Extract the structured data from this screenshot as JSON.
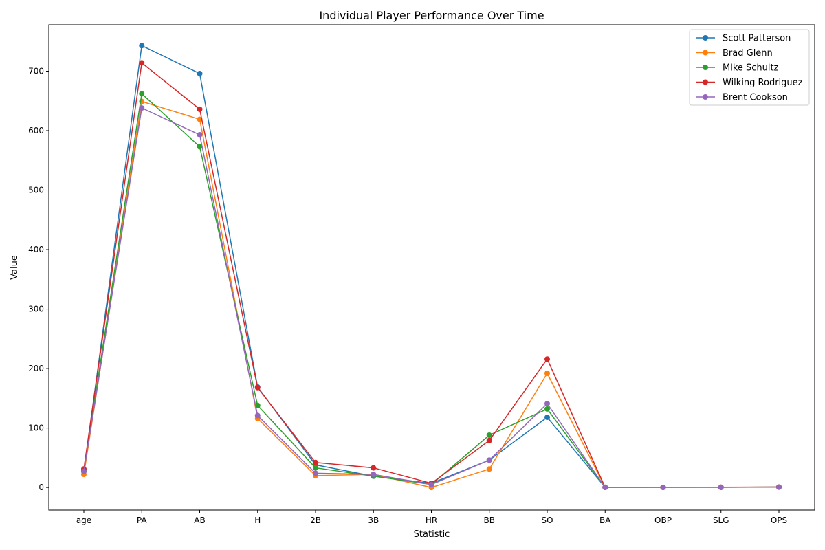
{
  "chart_data": {
    "type": "line",
    "title": "Individual Player Performance Over Time",
    "xlabel": "Statistic",
    "ylabel": "Value",
    "categories": [
      "age",
      "PA",
      "AB",
      "H",
      "2B",
      "3B",
      "HR",
      "BB",
      "SO",
      "BA",
      "OBP",
      "SLG",
      "OPS"
    ],
    "ylim": [
      -38,
      778
    ],
    "yticks": [
      0,
      100,
      200,
      300,
      400,
      500,
      600,
      700
    ],
    "grid": false,
    "legend_position": "top-right",
    "series": [
      {
        "name": "Scott Patterson",
        "color": "#1f77b4",
        "values": [
          27,
          743,
          696,
          169,
          38,
          19,
          7,
          46,
          118,
          0.243,
          0.29,
          0.349,
          0.639
        ]
      },
      {
        "name": "Brad Glenn",
        "color": "#ff7f0e",
        "values": [
          22,
          649,
          619,
          116,
          20,
          22,
          0,
          31,
          192,
          0.187,
          0.225,
          0.257,
          0.482
        ]
      },
      {
        "name": "Mike Schultz",
        "color": "#2ca02c",
        "values": [
          29,
          662,
          573,
          138,
          33,
          19,
          5,
          88,
          132,
          0.241,
          0.343,
          0.336,
          0.679
        ]
      },
      {
        "name": "Wilking Rodriguez",
        "color": "#d62728",
        "values": [
          31,
          714,
          636,
          168,
          42,
          33,
          7,
          79,
          216,
          0.264,
          0.346,
          0.371,
          0.717
        ]
      },
      {
        "name": "Brent Cookson",
        "color": "#9467bd",
        "values": [
          27,
          638,
          593,
          121,
          24,
          22,
          5,
          46,
          141,
          0.204,
          0.262,
          0.297,
          0.559
        ]
      }
    ]
  }
}
